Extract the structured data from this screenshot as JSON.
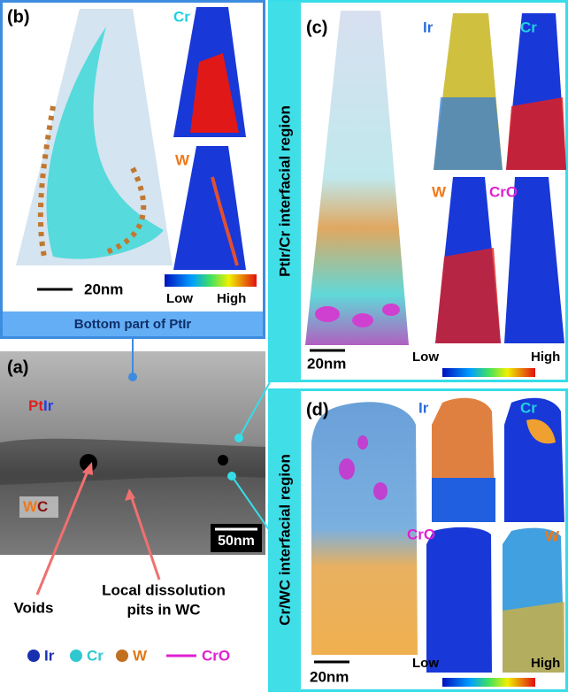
{
  "panel_b": {
    "label": "(b)",
    "maps": [
      "Cr",
      "W"
    ],
    "scale_bar": "20nm",
    "colorbar": [
      "Low",
      "High"
    ],
    "caption": "Bottom part of PtIr"
  },
  "panel_c": {
    "label": "(c)",
    "side_title": "PtIr/Cr interfacial region",
    "maps": [
      "Ir",
      "Cr",
      "W",
      "CrO"
    ],
    "scale_bar": "20nm",
    "colorbar": [
      "Low",
      "High"
    ]
  },
  "panel_a": {
    "label": "(a)",
    "phase_top": [
      "Pt",
      "Ir"
    ],
    "phase_bottom": [
      "W",
      "C"
    ],
    "scale_bar": "50nm"
  },
  "annotations": {
    "voids": "Voids",
    "pits": [
      "Local dissolution",
      "pits in WC"
    ]
  },
  "panel_d": {
    "label": "(d)",
    "side_title": "Cr/WC interfacial region",
    "maps": [
      "Ir",
      "Cr",
      "CrO",
      "W"
    ],
    "scale_bar": "20nm",
    "colorbar": [
      "Low",
      "High"
    ]
  },
  "legend": [
    "Ir",
    "Cr",
    "W",
    "CrO"
  ]
}
